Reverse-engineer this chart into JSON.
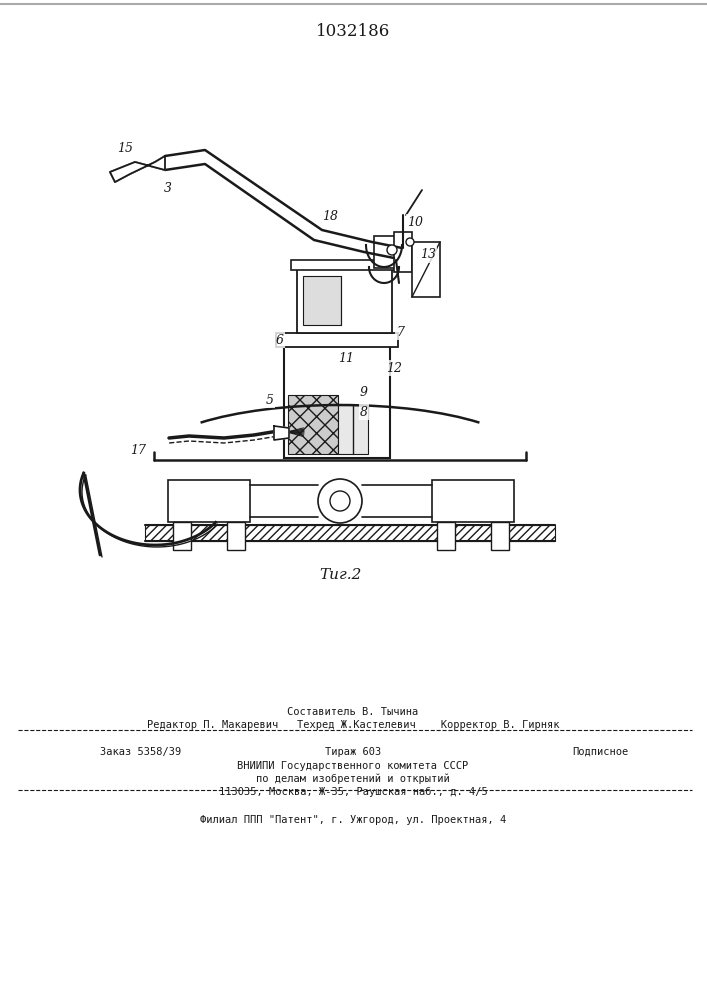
{
  "title": "1032186",
  "fig_label": "Τиг.2",
  "bg_color": "#ffffff",
  "line_color": "#1a1a1a",
  "footer_line0": "Составитель В. Тычина",
  "footer_line1": "Редактор П. Макаревич   Техред Ж.Кастелевич    Корректор В. Гирняк",
  "footer_line2": "Заказ 5358/39        Тираж 603           Подписное",
  "footer_line3": "ВНИИПИ Государственного комитета СССР",
  "footer_line4": "по делам изобретений и открытий",
  "footer_line5": "113035, Москва, Ж-35, Раушская наб., д. 4/5",
  "footer_line6": "Филиал ППП \"Патент\", г. Ужгород, ул. Проектная, 4"
}
